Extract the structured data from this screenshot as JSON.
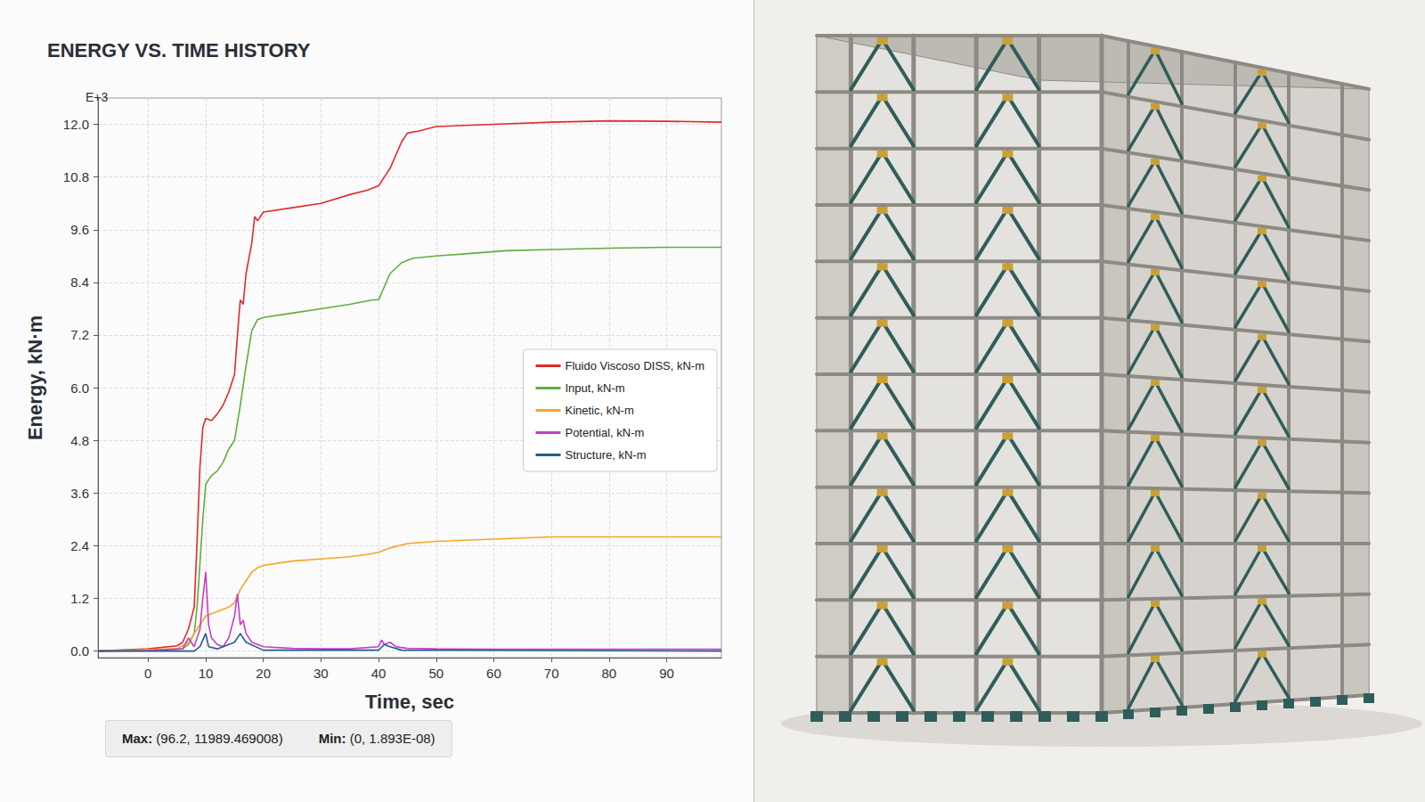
{
  "chart_data": {
    "type": "line",
    "title": "ENERGY VS. TIME HISTORY",
    "x_label": "Time, sec",
    "y_label": "Energy, kN·m",
    "axis_multiplier": "E+3",
    "xlim": [
      -8.7,
      99.5
    ],
    "xticks": [
      0,
      10,
      20,
      30,
      40,
      50,
      60,
      70,
      80,
      90
    ],
    "ylim": [
      -0.15,
      12.6
    ],
    "yticks": [
      {
        "value": 0,
        "label": "0.0"
      },
      1.2,
      2.4,
      3.6,
      4.8,
      {
        "value": 6,
        "label": "6.0"
      },
      7.2,
      8.4,
      9.6,
      10.8,
      {
        "value": 12,
        "label": "12.0"
      }
    ],
    "grid": true,
    "legend": "right",
    "series": [
      {
        "name": "Fluido Viscoso DISS, kN-m",
        "color": "#e02b2b",
        "x": [
          -8.7,
          0,
          5,
          6,
          7,
          8,
          8.5,
          9,
          9.5,
          10,
          11,
          12,
          13,
          14,
          15,
          15.5,
          16,
          16.5,
          17,
          18,
          18.5,
          19,
          20,
          25,
          30,
          35,
          38,
          40,
          41,
          42,
          43,
          44,
          45,
          47,
          50,
          60,
          70,
          80,
          90,
          99.5
        ],
        "values": [
          0,
          0.05,
          0.12,
          0.2,
          0.5,
          1.0,
          2.5,
          4.2,
          5.1,
          5.3,
          5.25,
          5.4,
          5.6,
          5.9,
          6.3,
          7.2,
          8.0,
          7.9,
          8.6,
          9.3,
          9.9,
          9.8,
          10.0,
          10.1,
          10.2,
          10.4,
          10.5,
          10.6,
          10.8,
          11.0,
          11.3,
          11.6,
          11.8,
          11.85,
          11.95,
          12.0,
          12.05,
          12.08,
          12.07,
          12.05
        ]
      },
      {
        "name": "Input, kN-m",
        "color": "#5fae3e",
        "x": [
          -8.7,
          0,
          6,
          7,
          8,
          8.5,
          9,
          9.5,
          10,
          11,
          12,
          13,
          14,
          15,
          16,
          17,
          18,
          19,
          20,
          25,
          30,
          35,
          39,
          40,
          41,
          42,
          44,
          46,
          50,
          55,
          60,
          62,
          70,
          80,
          90,
          99.5
        ],
        "values": [
          0,
          0.02,
          0.05,
          0.15,
          0.4,
          1.0,
          2.0,
          3.0,
          3.8,
          4.0,
          4.1,
          4.3,
          4.6,
          4.8,
          5.6,
          6.5,
          7.3,
          7.55,
          7.6,
          7.7,
          7.8,
          7.9,
          8.0,
          8.0,
          8.3,
          8.6,
          8.85,
          8.95,
          9.0,
          9.05,
          9.1,
          9.12,
          9.15,
          9.18,
          9.2,
          9.2
        ]
      },
      {
        "name": "Kinetic, kN-m",
        "color": "#f5a623",
        "x": [
          -8.7,
          5,
          7,
          8,
          9,
          10,
          12,
          14,
          15,
          16,
          17,
          18,
          19,
          20,
          25,
          30,
          35,
          38,
          40,
          42,
          45,
          50,
          60,
          70,
          80,
          90,
          99.5
        ],
        "values": [
          0,
          0.05,
          0.2,
          0.4,
          0.6,
          0.8,
          0.9,
          1.0,
          1.1,
          1.4,
          1.6,
          1.8,
          1.9,
          1.95,
          2.05,
          2.1,
          2.15,
          2.2,
          2.25,
          2.35,
          2.45,
          2.5,
          2.55,
          2.6,
          2.6,
          2.6,
          2.6
        ]
      },
      {
        "name": "Potential, kN-m",
        "color": "#c63cc9",
        "x": [
          -8.7,
          0,
          6,
          7,
          8,
          9,
          9.5,
          10,
          10.5,
          11,
          12,
          13,
          14,
          15,
          15.5,
          16,
          16.5,
          17,
          18,
          20,
          25,
          30,
          35,
          40,
          40.5,
          41,
          42,
          43,
          45,
          50,
          60,
          70,
          80,
          90,
          99.5
        ],
        "values": [
          0,
          0.01,
          0.05,
          0.3,
          0.1,
          0.5,
          1.2,
          1.8,
          0.6,
          0.3,
          0.15,
          0.1,
          0.3,
          0.8,
          1.3,
          0.6,
          0.7,
          0.4,
          0.2,
          0.1,
          0.06,
          0.05,
          0.05,
          0.1,
          0.25,
          0.15,
          0.2,
          0.1,
          0.06,
          0.05,
          0.04,
          0.04,
          0.04,
          0.04,
          0.04
        ]
      },
      {
        "name": "Structure, kN-m",
        "color": "#1f5f8b",
        "x": [
          -8.7,
          8,
          9,
          10,
          10.5,
          12,
          15,
          16,
          17,
          20,
          40,
          41,
          42,
          44,
          99.5
        ],
        "values": [
          0,
          0,
          0.1,
          0.4,
          0.1,
          0.05,
          0.2,
          0.4,
          0.2,
          0.02,
          0.02,
          0.15,
          0.1,
          0.02,
          0
        ]
      }
    ],
    "footer": [
      {
        "label": "Max:",
        "text": "(96.2, 11989.469008)"
      },
      {
        "label": "Min:",
        "text": "(0, 1.893E-08)"
      }
    ]
  }
}
